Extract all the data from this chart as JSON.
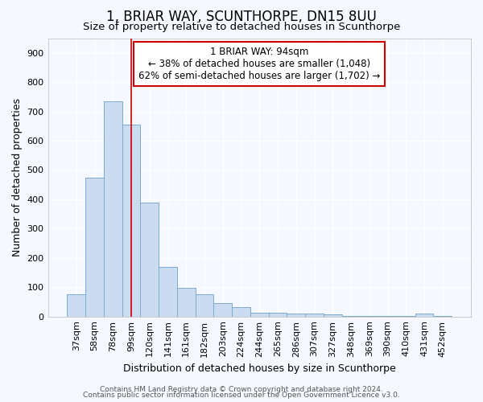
{
  "title": "1, BRIAR WAY, SCUNTHORPE, DN15 8UU",
  "subtitle": "Size of property relative to detached houses in Scunthorpe",
  "xlabel": "Distribution of detached houses by size in Scunthorpe",
  "ylabel": "Number of detached properties",
  "bar_color": "#ccdcf0",
  "bar_edge_color": "#7aaad0",
  "background_color": "#f5f8ff",
  "grid_color": "#ffffff",
  "categories": [
    "37sqm",
    "58sqm",
    "78sqm",
    "99sqm",
    "120sqm",
    "141sqm",
    "161sqm",
    "182sqm",
    "203sqm",
    "224sqm",
    "244sqm",
    "265sqm",
    "286sqm",
    "307sqm",
    "327sqm",
    "348sqm",
    "369sqm",
    "390sqm",
    "410sqm",
    "431sqm",
    "452sqm"
  ],
  "values": [
    75,
    475,
    735,
    655,
    390,
    170,
    98,
    75,
    46,
    33,
    13,
    13,
    10,
    9,
    8,
    1,
    1,
    1,
    1,
    9,
    1
  ],
  "vline_x": 3.0,
  "vline_color": "#cc0000",
  "annotation_title": "1 BRIAR WAY: 94sqm",
  "annotation_line1": "← 38% of detached houses are smaller (1,048)",
  "annotation_line2": "62% of semi-detached houses are larger (1,702) →",
  "annotation_box_color": "#ffffff",
  "annotation_border_color": "#cc0000",
  "ylim": [
    0,
    950
  ],
  "yticks": [
    0,
    100,
    200,
    300,
    400,
    500,
    600,
    700,
    800,
    900
  ],
  "footer1": "Contains HM Land Registry data © Crown copyright and database right 2024.",
  "footer2": "Contains public sector information licensed under the Open Government Licence v3.0.",
  "title_fontsize": 12,
  "subtitle_fontsize": 9.5,
  "axis_label_fontsize": 9,
  "tick_fontsize": 8,
  "annotation_fontsize": 8.5,
  "footer_fontsize": 6.5
}
